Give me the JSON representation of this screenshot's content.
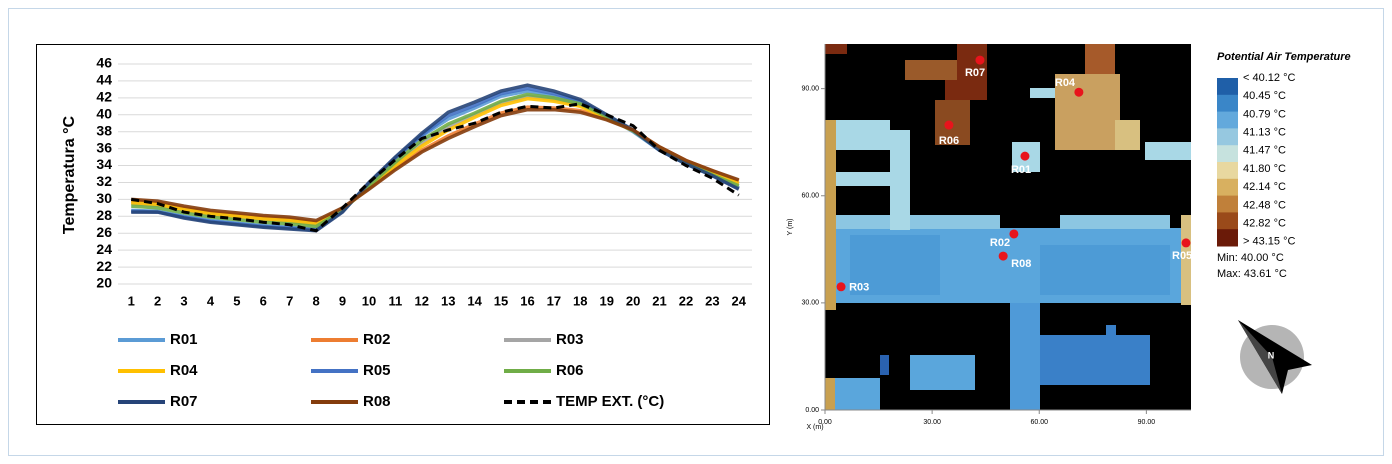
{
  "chart_data": [
    {
      "type": "line",
      "ylabel": "Temperatura °C",
      "categories": [
        "1",
        "2",
        "3",
        "4",
        "5",
        "6",
        "7",
        "8",
        "9",
        "10",
        "11",
        "12",
        "13",
        "14",
        "15",
        "16",
        "17",
        "18",
        "19",
        "20",
        "21",
        "22",
        "23",
        "24"
      ],
      "ylim": [
        20,
        46
      ],
      "yticks": [
        20,
        22,
        24,
        26,
        28,
        30,
        32,
        34,
        36,
        38,
        40,
        42,
        44,
        46
      ],
      "grid": true,
      "series": [
        {
          "name": "R01",
          "color": "#5b9bd5",
          "values": [
            28.7,
            28.6,
            28,
            27.5,
            27.2,
            26.9,
            26.7,
            26.5,
            28.7,
            31.8,
            34.8,
            37.5,
            39.5,
            40.8,
            42.2,
            42.8,
            42.2,
            41.5,
            39.8,
            38,
            35.8,
            34.2,
            32.8,
            31.4
          ]
        },
        {
          "name": "R02",
          "color": "#ed7d31",
          "values": [
            29.8,
            29.6,
            29,
            28.5,
            28.2,
            27.9,
            27.7,
            27.3,
            28.9,
            31.3,
            33.7,
            35.8,
            37.5,
            38.9,
            40.2,
            40.9,
            40.8,
            40.5,
            39.5,
            38.2,
            36.2,
            34.6,
            33.4,
            32.2
          ]
        },
        {
          "name": "R03",
          "color": "#a5a5a5",
          "values": [
            29.5,
            29.3,
            28.7,
            28.2,
            27.9,
            27.6,
            27.4,
            27,
            28.8,
            31.5,
            34.2,
            36.6,
            38.6,
            40,
            41.4,
            42.2,
            41.8,
            41.2,
            39.7,
            38.1,
            36,
            34.4,
            33.1,
            31.8
          ]
        },
        {
          "name": "R04",
          "color": "#ffc000",
          "values": [
            29.6,
            29.4,
            28.8,
            28.3,
            28,
            27.7,
            27.5,
            27.1,
            28.8,
            31.4,
            34,
            36.3,
            38.2,
            39.7,
            41.1,
            41.9,
            41.6,
            41,
            39.6,
            38.1,
            36,
            34.4,
            33.1,
            31.9
          ]
        },
        {
          "name": "R05",
          "color": "#4472c4",
          "values": [
            28.6,
            28.5,
            27.9,
            27.4,
            27.1,
            26.8,
            26.6,
            26.4,
            28.6,
            31.9,
            34.9,
            37.6,
            39.9,
            41.1,
            42.5,
            43.1,
            42.5,
            41.6,
            39.9,
            38.1,
            35.8,
            34.2,
            32.8,
            31.3
          ]
        },
        {
          "name": "R06",
          "color": "#70ad47",
          "values": [
            29.2,
            29,
            28.4,
            27.9,
            27.6,
            27.3,
            27.1,
            26.8,
            28.7,
            31.6,
            34.4,
            37,
            38.9,
            40.2,
            41.6,
            42.4,
            42,
            41.3,
            39.8,
            38.1,
            35.9,
            34.3,
            32.9,
            31.6
          ]
        },
        {
          "name": "R07",
          "color": "#264478",
          "values": [
            28.5,
            28.5,
            27.8,
            27.3,
            27,
            26.7,
            26.5,
            26.3,
            28.5,
            32,
            35,
            37.8,
            40.3,
            41.5,
            42.8,
            43.5,
            42.8,
            41.8,
            40,
            38.2,
            35.8,
            34.2,
            32.8,
            31.2
          ]
        },
        {
          "name": "R08",
          "color": "#843c0c",
          "values": [
            30,
            29.8,
            29.2,
            28.7,
            28.4,
            28.1,
            27.9,
            27.5,
            29,
            31.2,
            33.5,
            35.6,
            37.2,
            38.6,
            39.9,
            40.6,
            40.6,
            40.3,
            39.4,
            38.2,
            36.2,
            34.6,
            33.4,
            32.3
          ]
        },
        {
          "name": "TEMP EXT. (°C)",
          "color": "#000000",
          "line_style": "dashed",
          "values": [
            30,
            29.5,
            28.5,
            28,
            27.7,
            27.3,
            27,
            26.3,
            29,
            32,
            34.7,
            37.2,
            38.2,
            39,
            40.3,
            41,
            40.8,
            41.3,
            40,
            38.7,
            35.8,
            34,
            32.5,
            30.5
          ]
        }
      ]
    },
    {
      "type": "scatter",
      "xlabel": "X (m)",
      "ylabel": "Y (m)",
      "xlim": [
        0,
        102.5
      ],
      "ylim": [
        0,
        102.5
      ],
      "xticks": [
        {
          "value": 0,
          "label": "0.00"
        },
        {
          "value": 30,
          "label": "30.00"
        },
        {
          "value": 60,
          "label": "60.00"
        },
        {
          "value": 90,
          "label": "90.00"
        }
      ],
      "yticks": [
        {
          "value": 0,
          "label": "0.00"
        },
        {
          "value": 30,
          "label": "30.00"
        },
        {
          "value": 60,
          "label": "60.00"
        },
        {
          "value": 90,
          "label": "90.00"
        }
      ],
      "labels": [
        "R07",
        "R04",
        "R06",
        "R01",
        "R02",
        "R08",
        "R05",
        "R03"
      ],
      "x": [
        43.4,
        71.1,
        34.7,
        56,
        52.9,
        49.9,
        101.1,
        4.5
      ],
      "values": [
        98,
        89,
        79.8,
        71.1,
        49.3,
        43.1,
        46.8,
        34.5
      ],
      "color": "#e8141c",
      "colorbar": {
        "title": "Potential Air Temperature",
        "labels": [
          "< 40.12 °C",
          "40.45  °C",
          "40.79  °C",
          "41.13  °C",
          "41.47  °C",
          "41.80  °C",
          "42.14  °C",
          "42.48  °C",
          "42.82  °C",
          "> 43.15 °C"
        ],
        "colors": [
          "#1f5fa8",
          "#3a86c8",
          "#63a9dc",
          "#96c8e0",
          "#c6e2de",
          "#e8d8a0",
          "#d8b060",
          "#c0803a",
          "#9a4a1a",
          "#6a1a08"
        ]
      },
      "annotations": [
        "Min: 40.00 °C",
        "Max: 43.61 °C"
      ],
      "compass": "N"
    }
  ]
}
